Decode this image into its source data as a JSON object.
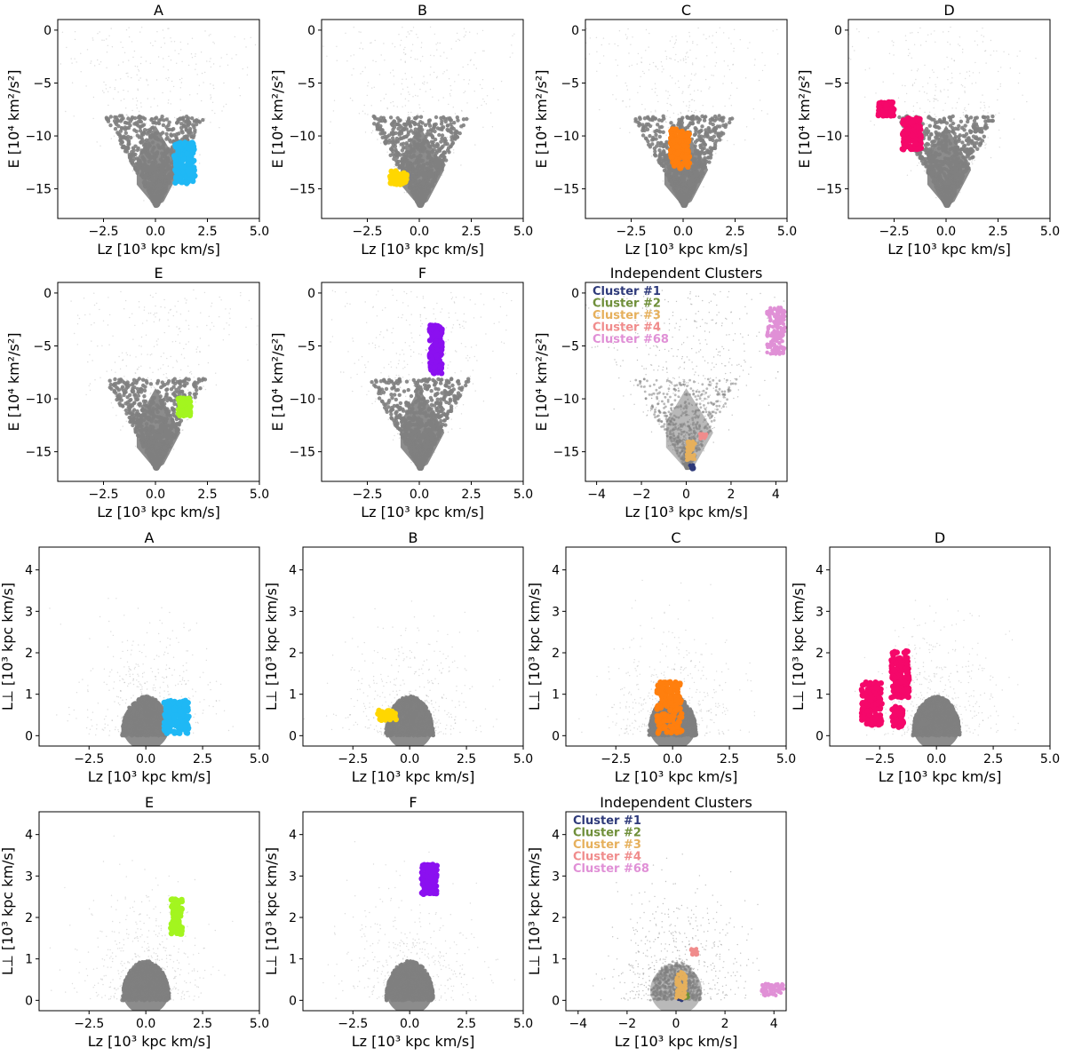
{
  "chart_data": [
    {
      "type": "scatter",
      "group": "energy",
      "title": "A",
      "xlim": [
        -4.7,
        5.0
      ],
      "ylim": [
        -17.8,
        1.0
      ],
      "xticks": [
        -2.5,
        0.0,
        2.5,
        5.0
      ],
      "xticklabels": [
        "−2.5",
        "0.0",
        "2.5",
        "5.0"
      ],
      "yticks": [
        0,
        -5,
        -10,
        -15
      ],
      "yticklabels": [
        "0",
        "−5",
        "−10",
        "−15"
      ],
      "ylabel": "E [10⁴ km²/s²]",
      "xlabel": "Lz [10³ kpc km/s]",
      "background": {
        "color": "#808080",
        "description": "field stars (grey)"
      },
      "highlight": [
        {
          "name": "A",
          "color": "#1fb8f5",
          "x_range": [
            0.9,
            1.9
          ],
          "y_range": [
            -14.5,
            -10.6
          ]
        }
      ]
    },
    {
      "type": "scatter",
      "group": "energy",
      "title": "B",
      "xlim": [
        -4.7,
        5.0
      ],
      "ylim": [
        -17.8,
        1.0
      ],
      "xticks": [
        -2.5,
        0.0,
        2.5,
        5.0
      ],
      "xticklabels": [
        "−2.5",
        "0.0",
        "2.5",
        "5.0"
      ],
      "yticks": [
        0,
        -5,
        -10,
        -15
      ],
      "yticklabels": [
        "0",
        "−5",
        "−10",
        "−15"
      ],
      "ylabel": "E [10⁴ km²/s²]",
      "xlabel": "Lz [10³ kpc km/s]",
      "background": {
        "color": "#808080",
        "description": "field stars (grey)"
      },
      "highlight": [
        {
          "name": "B",
          "color": "#ffd700",
          "x_range": [
            -1.4,
            -0.6
          ],
          "y_range": [
            -14.6,
            -13.3
          ]
        }
      ]
    },
    {
      "type": "scatter",
      "group": "energy",
      "title": "C",
      "xlim": [
        -4.7,
        5.0
      ],
      "ylim": [
        -17.8,
        1.0
      ],
      "xticks": [
        -2.5,
        0.0,
        2.5,
        5.0
      ],
      "xticklabels": [
        "−2.5",
        "0.0",
        "2.5",
        "5.0"
      ],
      "yticks": [
        0,
        -5,
        -10,
        -15
      ],
      "yticklabels": [
        "0",
        "−5",
        "−10",
        "−15"
      ],
      "ylabel": "E [10⁴ km²/s²]",
      "xlabel": "Lz [10³ kpc km/s]",
      "background": {
        "color": "#808080",
        "description": "field stars (grey)"
      },
      "highlight": [
        {
          "name": "C",
          "color": "#ff7f0e",
          "x_range": [
            -0.6,
            0.3
          ],
          "y_range": [
            -13.2,
            -9.3
          ]
        }
      ]
    },
    {
      "type": "scatter",
      "group": "energy",
      "title": "D",
      "xlim": [
        -4.7,
        5.0
      ],
      "ylim": [
        -17.8,
        1.0
      ],
      "xticks": [
        -2.5,
        0.0,
        2.5,
        5.0
      ],
      "xticklabels": [
        "−2.5",
        "0.0",
        "2.5",
        "5.0"
      ],
      "yticks": [
        0,
        -5,
        -10,
        -15
      ],
      "yticklabels": [
        "0",
        "−5",
        "−10",
        "−15"
      ],
      "ylabel": "E [10⁴ km²/s²]",
      "xlabel": "Lz [10³ kpc km/s]",
      "background": {
        "color": "#808080",
        "description": "field stars (grey)"
      },
      "highlight": [
        {
          "name": "D-1",
          "color": "#f5086a",
          "x_range": [
            -3.3,
            -2.5
          ],
          "y_range": [
            -8.1,
            -6.8
          ]
        },
        {
          "name": "D-2",
          "color": "#f5086a",
          "x_range": [
            -2.1,
            -1.2
          ],
          "y_range": [
            -11.3,
            -8.3
          ]
        }
      ]
    },
    {
      "type": "scatter",
      "group": "energy",
      "title": "E",
      "xlim": [
        -4.7,
        5.0
      ],
      "ylim": [
        -17.8,
        1.0
      ],
      "xticks": [
        -2.5,
        0.0,
        2.5,
        5.0
      ],
      "xticklabels": [
        "−2.5",
        "0.0",
        "2.5",
        "5.0"
      ],
      "yticks": [
        0,
        -5,
        -10,
        -15
      ],
      "yticklabels": [
        "0",
        "−5",
        "−10",
        "−15"
      ],
      "ylabel": "E [10⁴ km²/s²]",
      "xlabel": "Lz [10³ kpc km/s]",
      "background": {
        "color": "#808080",
        "description": "field stars (grey)"
      },
      "highlight": [
        {
          "name": "E",
          "color": "#a3f51f",
          "x_range": [
            1.1,
            1.7
          ],
          "y_range": [
            -11.6,
            -9.9
          ]
        }
      ]
    },
    {
      "type": "scatter",
      "group": "energy",
      "title": "F",
      "xlim": [
        -4.7,
        5.0
      ],
      "ylim": [
        -17.8,
        1.0
      ],
      "xticks": [
        -2.5,
        0.0,
        2.5,
        5.0
      ],
      "xticklabels": [
        "−2.5",
        "0.0",
        "2.5",
        "5.0"
      ],
      "yticks": [
        0,
        -5,
        -10,
        -15
      ],
      "yticklabels": [
        "0",
        "−5",
        "−10",
        "−15"
      ],
      "ylabel": "E [10⁴ km²/s²]",
      "xlabel": "Lz [10³ kpc km/s]",
      "background": {
        "color": "#808080",
        "description": "field stars (grey)"
      },
      "highlight": [
        {
          "name": "F",
          "color": "#8b10f0",
          "x_range": [
            0.5,
            1.1
          ],
          "y_range": [
            -7.6,
            -3.0
          ]
        }
      ]
    },
    {
      "type": "scatter",
      "group": "energy",
      "title": "Independent Clusters",
      "xlim": [
        -4.5,
        4.5
      ],
      "ylim": [
        -17.8,
        1.0
      ],
      "xticks": [
        -4,
        -2,
        0,
        2,
        4
      ],
      "xticklabels": [
        "−4",
        "−2",
        "0",
        "2",
        "4"
      ],
      "yticks": [
        0,
        -5,
        -10,
        -15
      ],
      "yticklabels": [
        "0",
        "−5",
        "−10",
        "−15"
      ],
      "ylabel": "E [10⁴ km²/s²]",
      "xlabel": "Lz [10³ kpc km/s]",
      "background": {
        "color": "#808080",
        "description": "field stars (light grey)"
      },
      "legend": {
        "placement": "top-left",
        "entries": [
          {
            "label": "Cluster #1",
            "color": "#2e3a7a"
          },
          {
            "label": "Cluster #2",
            "color": "#6f8f3a"
          },
          {
            "label": "Cluster #3",
            "color": "#e6b05c"
          },
          {
            "label": "Cluster #4",
            "color": "#f08c8c"
          },
          {
            "label": "Cluster #68",
            "color": "#e090d6"
          }
        ]
      },
      "highlight": [
        {
          "name": "Cluster #1",
          "color": "#2e3a7a",
          "x_range": [
            0.15,
            0.35
          ],
          "y_range": [
            -16.7,
            -16.2
          ]
        },
        {
          "name": "Cluster #3",
          "color": "#e6b05c",
          "x_range": [
            0.0,
            0.4
          ],
          "y_range": [
            -15.8,
            -14.0
          ]
        },
        {
          "name": "Cluster #4",
          "color": "#f08c8c",
          "x_range": [
            0.6,
            0.9
          ],
          "y_range": [
            -13.8,
            -13.3
          ]
        },
        {
          "name": "Cluster #68",
          "color": "#e090d6",
          "x_range": [
            3.6,
            4.4
          ],
          "y_range": [
            -5.8,
            -1.3
          ]
        }
      ]
    },
    {
      "type": "scatter",
      "group": "angular-momentum",
      "title": "A",
      "xlim": [
        -4.7,
        5.0
      ],
      "ylim": [
        -0.25,
        4.55
      ],
      "xticks": [
        -2.5,
        0.0,
        2.5,
        5.0
      ],
      "xticklabels": [
        "−2.5",
        "0.0",
        "2.5",
        "5.0"
      ],
      "yticks": [
        0,
        1,
        2,
        3,
        4
      ],
      "yticklabels": [
        "0",
        "1",
        "2",
        "3",
        "4"
      ],
      "ylabel": "L⊥ [10³ kpc km/s]",
      "xlabel": "Lz [10³ kpc km/s]",
      "background": {
        "color": "#808080",
        "description": "field stars (grey)"
      },
      "highlight": [
        {
          "name": "A",
          "color": "#1fb8f5",
          "x_range": [
            0.8,
            1.9
          ],
          "y_range": [
            0.05,
            0.85
          ]
        }
      ]
    },
    {
      "type": "scatter",
      "group": "angular-momentum",
      "title": "B",
      "xlim": [
        -4.7,
        5.0
      ],
      "ylim": [
        -0.25,
        4.55
      ],
      "xticks": [
        -2.5,
        0.0,
        2.5,
        5.0
      ],
      "xticklabels": [
        "−2.5",
        "0.0",
        "2.5",
        "5.0"
      ],
      "yticks": [
        0,
        1,
        2,
        3,
        4
      ],
      "yticklabels": [
        "0",
        "1",
        "2",
        "3",
        "4"
      ],
      "ylabel": "L⊥ [10³ kpc km/s]",
      "xlabel": "Lz [10³ kpc km/s]",
      "background": {
        "color": "#808080",
        "description": "field stars (grey)"
      },
      "highlight": [
        {
          "name": "B",
          "color": "#ffd700",
          "x_range": [
            -1.4,
            -0.6
          ],
          "y_range": [
            0.35,
            0.62
          ]
        }
      ]
    },
    {
      "type": "scatter",
      "group": "angular-momentum",
      "title": "C",
      "xlim": [
        -4.7,
        5.0
      ],
      "ylim": [
        -0.25,
        4.55
      ],
      "xticks": [
        -2.5,
        0.0,
        2.5,
        5.0
      ],
      "xticklabels": [
        "−2.5",
        "0.0",
        "2.5",
        "5.0"
      ],
      "yticks": [
        0,
        1,
        2,
        3,
        4
      ],
      "yticklabels": [
        "0",
        "1",
        "2",
        "3",
        "4"
      ],
      "ylabel": "L⊥ [10³ kpc km/s]",
      "xlabel": "Lz [10³ kpc km/s]",
      "background": {
        "color": "#808080",
        "description": "field stars (grey)"
      },
      "highlight": [
        {
          "name": "C",
          "color": "#ff7f0e",
          "x_range": [
            -0.7,
            0.4
          ],
          "y_range": [
            0.05,
            1.3
          ]
        }
      ]
    },
    {
      "type": "scatter",
      "group": "angular-momentum",
      "title": "D",
      "xlim": [
        -4.7,
        5.0
      ],
      "ylim": [
        -0.25,
        4.55
      ],
      "xticks": [
        -2.5,
        0.0,
        2.5,
        5.0
      ],
      "xticklabels": [
        "−2.5",
        "0.0",
        "2.5",
        "5.0"
      ],
      "yticks": [
        0,
        1,
        2,
        3,
        4
      ],
      "yticklabels": [
        "0",
        "1",
        "2",
        "3",
        "4"
      ],
      "ylabel": "L⊥ [10³ kpc km/s]",
      "xlabel": "Lz [10³ kpc km/s]",
      "background": {
        "color": "#808080",
        "description": "field stars (grey)"
      },
      "highlight": [
        {
          "name": "D-1",
          "color": "#f5086a",
          "x_range": [
            -3.3,
            -2.4
          ],
          "y_range": [
            0.25,
            1.3
          ]
        },
        {
          "name": "D-2",
          "color": "#f5086a",
          "x_range": [
            -2.0,
            -1.2
          ],
          "y_range": [
            0.9,
            2.05
          ]
        },
        {
          "name": "D-3",
          "color": "#f5086a",
          "x_range": [
            -1.95,
            -1.45
          ],
          "y_range": [
            0.2,
            0.7
          ]
        }
      ]
    },
    {
      "type": "scatter",
      "group": "angular-momentum",
      "title": "E",
      "xlim": [
        -4.7,
        5.0
      ],
      "ylim": [
        -0.25,
        4.55
      ],
      "xticks": [
        -2.5,
        0.0,
        2.5,
        5.0
      ],
      "xticklabels": [
        "−2.5",
        "0.0",
        "2.5",
        "5.0"
      ],
      "yticks": [
        0,
        1,
        2,
        3,
        4
      ],
      "yticklabels": [
        "0",
        "1",
        "2",
        "3",
        "4"
      ],
      "ylabel": "L⊥ [10³ kpc km/s]",
      "xlabel": "Lz [10³ kpc km/s]",
      "background": {
        "color": "#808080",
        "description": "field stars (grey)"
      },
      "highlight": [
        {
          "name": "E-1",
          "color": "#a3f51f",
          "x_range": [
            1.1,
            1.6
          ],
          "y_range": [
            2.0,
            2.45
          ]
        },
        {
          "name": "E-2",
          "color": "#a3f51f",
          "x_range": [
            1.1,
            1.6
          ],
          "y_range": [
            1.6,
            1.95
          ]
        }
      ]
    },
    {
      "type": "scatter",
      "group": "angular-momentum",
      "title": "F",
      "xlim": [
        -4.7,
        5.0
      ],
      "ylim": [
        -0.25,
        4.55
      ],
      "xticks": [
        -2.5,
        0.0,
        2.5,
        5.0
      ],
      "xticklabels": [
        "−2.5",
        "0.0",
        "2.5",
        "5.0"
      ],
      "yticks": [
        0,
        1,
        2,
        3,
        4
      ],
      "yticklabels": [
        "0",
        "1",
        "2",
        "3",
        "4"
      ],
      "ylabel": "L⊥ [10³ kpc km/s]",
      "xlabel": "Lz [10³ kpc km/s]",
      "background": {
        "color": "#808080",
        "description": "field stars (grey)"
      },
      "highlight": [
        {
          "name": "F",
          "color": "#8b10f0",
          "x_range": [
            0.5,
            1.2
          ],
          "y_range": [
            2.55,
            3.3
          ]
        }
      ]
    },
    {
      "type": "scatter",
      "group": "angular-momentum",
      "title": "Independent Clusters",
      "xlim": [
        -4.5,
        4.5
      ],
      "ylim": [
        -0.25,
        4.55
      ],
      "xticks": [
        -4,
        -2,
        0,
        2,
        4
      ],
      "xticklabels": [
        "−4",
        "−2",
        "0",
        "2",
        "4"
      ],
      "yticks": [
        0,
        1,
        2,
        3,
        4
      ],
      "yticklabels": [
        "0",
        "1",
        "2",
        "3",
        "4"
      ],
      "ylabel": "L⊥ [10³ kpc km/s]",
      "xlabel": "Lz [10³ kpc km/s]",
      "background": {
        "color": "#808080",
        "description": "field stars (light grey)"
      },
      "legend": {
        "placement": "top-left",
        "entries": [
          {
            "label": "Cluster #1",
            "color": "#2e3a7a"
          },
          {
            "label": "Cluster #2",
            "color": "#6f8f3a"
          },
          {
            "label": "Cluster #3",
            "color": "#e6b05c"
          },
          {
            "label": "Cluster #4",
            "color": "#f08c8c"
          },
          {
            "label": "Cluster #68",
            "color": "#e090d6"
          }
        ]
      },
      "highlight": [
        {
          "name": "Cluster #1",
          "color": "#2e3a7a",
          "x_range": [
            0.1,
            0.3
          ],
          "y_range": [
            0.0,
            0.1
          ]
        },
        {
          "name": "Cluster #2",
          "color": "#6f8f3a",
          "x_range": [
            0.3,
            0.5
          ],
          "y_range": [
            0.05,
            0.15
          ]
        },
        {
          "name": "Cluster #3",
          "color": "#e6b05c",
          "x_range": [
            0.0,
            0.4
          ],
          "y_range": [
            0.05,
            0.7
          ]
        },
        {
          "name": "Cluster #4",
          "color": "#f08c8c",
          "x_range": [
            0.6,
            0.9
          ],
          "y_range": [
            1.1,
            1.25
          ]
        },
        {
          "name": "Cluster #68",
          "color": "#e090d6",
          "x_range": [
            3.5,
            4.4
          ],
          "y_range": [
            0.1,
            0.4
          ]
        }
      ]
    }
  ]
}
